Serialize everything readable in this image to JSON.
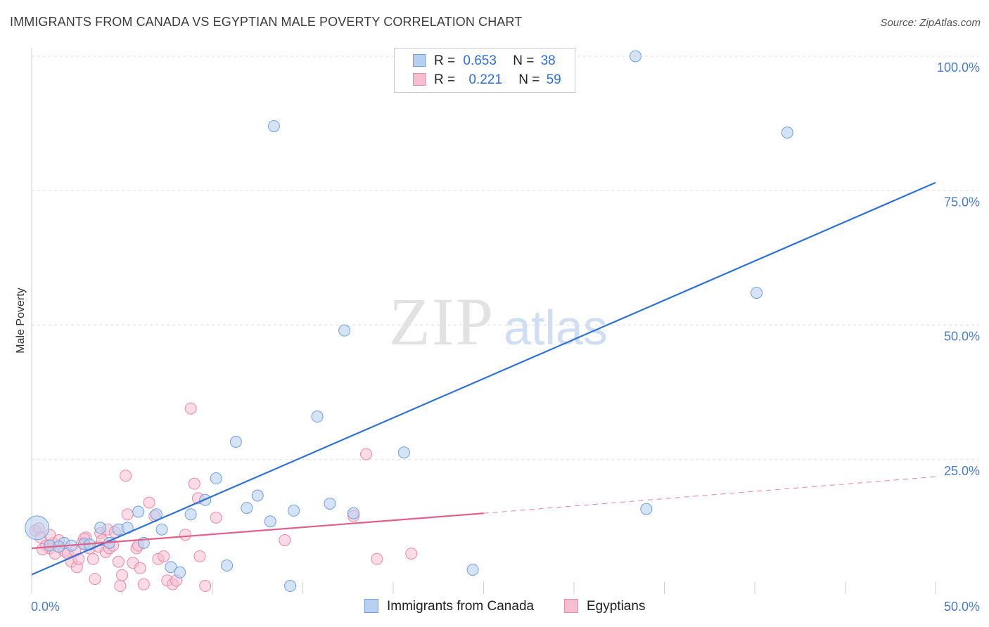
{
  "header": {
    "title": "IMMIGRANTS FROM CANADA VS EGYPTIAN MALE POVERTY CORRELATION CHART",
    "source": "Source: ZipAtlas.com"
  },
  "watermark": {
    "zip": "ZIP",
    "atlas": "atlas"
  },
  "legend": {
    "rows": [
      {
        "r_label": "R =",
        "r_value": "0.653",
        "n_label": "N =",
        "n_value": "38"
      },
      {
        "r_label": "R =",
        "r_value": "0.221",
        "n_label": "N =",
        "n_value": "59"
      }
    ]
  },
  "bottom_legend": {
    "canada": "Immigrants from Canada",
    "egyptians": "Egyptians"
  },
  "colors": {
    "canada_fill": "#b8d0f0",
    "canada_stroke": "#6f9fdc",
    "canada_line": "#2f72d6",
    "egypt_fill": "#f7bdd0",
    "egypt_stroke": "#e88aa8",
    "egypt_line": "#e0608a",
    "grid": "#dddddd",
    "tick_text": "#4a7cc9"
  },
  "chart_data": {
    "type": "scatter",
    "title": "IMMIGRANTS FROM CANADA VS EGYPTIAN MALE POVERTY CORRELATION CHART",
    "xlabel": "",
    "ylabel": "Male Poverty",
    "xlim": [
      0,
      50
    ],
    "ylim": [
      0,
      100
    ],
    "x_tick_labels": [
      "0.0%",
      "50.0%"
    ],
    "y_tick_labels": [
      "25.0%",
      "50.0%",
      "75.0%",
      "100.0%"
    ],
    "y_ticks": [
      25,
      50,
      75,
      100
    ],
    "x_ticks": [
      0,
      5,
      10,
      15,
      20,
      25,
      30,
      35,
      40,
      45,
      50
    ],
    "series": [
      {
        "name": "Immigrants from Canada",
        "R": 0.653,
        "N": 38,
        "trend": {
          "x": [
            0,
            50
          ],
          "y": [
            3.6,
            76.5
          ],
          "dashed": false
        },
        "points": [
          [
            0.3,
            12.3
          ],
          [
            1.0,
            9.0
          ],
          [
            1.8,
            9.5
          ],
          [
            2.9,
            9.3
          ],
          [
            3.8,
            12.3
          ],
          [
            4.3,
            9.5
          ],
          [
            4.8,
            12.0
          ],
          [
            5.3,
            12.3
          ],
          [
            5.9,
            15.3
          ],
          [
            6.9,
            14.8
          ],
          [
            7.2,
            12.0
          ],
          [
            6.2,
            9.5
          ],
          [
            7.7,
            5.0
          ],
          [
            8.2,
            4.0
          ],
          [
            8.8,
            14.8
          ],
          [
            9.6,
            17.5
          ],
          [
            10.2,
            21.5
          ],
          [
            10.8,
            5.3
          ],
          [
            11.3,
            28.3
          ],
          [
            11.9,
            16.0
          ],
          [
            12.5,
            18.3
          ],
          [
            13.2,
            13.5
          ],
          [
            13.4,
            87.0
          ],
          [
            14.3,
            1.5
          ],
          [
            14.5,
            15.5
          ],
          [
            15.8,
            33.0
          ],
          [
            16.5,
            16.8
          ],
          [
            17.3,
            49.0
          ],
          [
            17.8,
            15.0
          ],
          [
            20.6,
            26.3
          ],
          [
            24.4,
            4.5
          ],
          [
            33.4,
            100.0
          ],
          [
            34.0,
            15.8
          ],
          [
            40.1,
            56.0
          ],
          [
            41.8,
            85.8
          ],
          [
            3.2,
            9.2
          ],
          [
            2.2,
            9.0
          ],
          [
            1.5,
            8.8
          ]
        ]
      },
      {
        "name": "Egyptians",
        "R": 0.221,
        "N": 59,
        "trend": {
          "x": [
            0,
            25
          ],
          "y": [
            8.5,
            15.0
          ],
          "dashed": false
        },
        "trend_extension": {
          "x": [
            25,
            50
          ],
          "y": [
            15.0,
            21.8
          ],
          "dashed": true
        },
        "points": [
          [
            0.2,
            11.8
          ],
          [
            0.4,
            12.2
          ],
          [
            0.5,
            10.5
          ],
          [
            0.8,
            9.0
          ],
          [
            1.0,
            8.5
          ],
          [
            1.2,
            9.5
          ],
          [
            1.3,
            7.5
          ],
          [
            1.5,
            10.0
          ],
          [
            1.8,
            8.0
          ],
          [
            2.0,
            7.5
          ],
          [
            2.2,
            6.0
          ],
          [
            2.4,
            8.0
          ],
          [
            2.5,
            5.0
          ],
          [
            2.6,
            6.5
          ],
          [
            2.8,
            9.5
          ],
          [
            3.0,
            10.5
          ],
          [
            3.2,
            8.5
          ],
          [
            3.4,
            6.5
          ],
          [
            3.5,
            2.8
          ],
          [
            3.7,
            8.8
          ],
          [
            3.8,
            11.3
          ],
          [
            3.9,
            10.0
          ],
          [
            4.1,
            7.8
          ],
          [
            4.2,
            12.0
          ],
          [
            4.3,
            8.5
          ],
          [
            4.5,
            9.0
          ],
          [
            4.6,
            11.5
          ],
          [
            4.8,
            6.0
          ],
          [
            4.9,
            1.5
          ],
          [
            5.0,
            3.5
          ],
          [
            5.2,
            22.0
          ],
          [
            5.3,
            14.8
          ],
          [
            5.6,
            5.8
          ],
          [
            5.8,
            8.5
          ],
          [
            5.9,
            9.0
          ],
          [
            6.0,
            4.8
          ],
          [
            6.2,
            1.8
          ],
          [
            6.5,
            17.0
          ],
          [
            6.8,
            14.5
          ],
          [
            7.0,
            6.5
          ],
          [
            7.3,
            7.0
          ],
          [
            7.5,
            2.5
          ],
          [
            7.8,
            1.8
          ],
          [
            8.0,
            2.5
          ],
          [
            8.5,
            11.0
          ],
          [
            8.8,
            34.5
          ],
          [
            9.0,
            20.5
          ],
          [
            9.2,
            17.8
          ],
          [
            9.3,
            7.0
          ],
          [
            9.6,
            1.5
          ],
          [
            10.2,
            14.2
          ],
          [
            14.0,
            10.0
          ],
          [
            17.8,
            14.5
          ],
          [
            18.5,
            26.0
          ],
          [
            19.1,
            6.5
          ],
          [
            21.0,
            7.5
          ],
          [
            1.0,
            11.0
          ],
          [
            0.6,
            8.3
          ],
          [
            2.9,
            10.3
          ]
        ]
      }
    ]
  }
}
